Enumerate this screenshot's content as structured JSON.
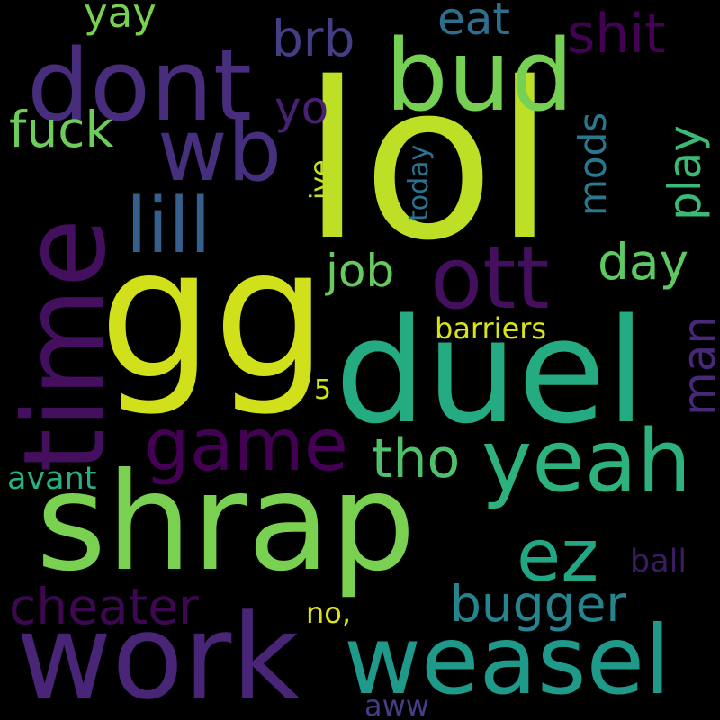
{
  "cloud": {
    "background": "#000000",
    "words": [
      {
        "text": "lol",
        "color": "#bddf26"
      },
      {
        "text": "gg",
        "color": "#d0e11c"
      },
      {
        "text": "duel",
        "color": "#25ab82"
      },
      {
        "text": "shrap",
        "color": "#7ad151"
      },
      {
        "text": "work",
        "color": "#482576"
      },
      {
        "text": "time",
        "color": "#440f5f"
      },
      {
        "text": "dont",
        "color": "#472d7b"
      },
      {
        "text": "bud",
        "color": "#75d054"
      },
      {
        "text": "weasel",
        "color": "#1f9a8a"
      },
      {
        "text": "yeah",
        "color": "#2db27d"
      },
      {
        "text": "wb",
        "color": "#46307e"
      },
      {
        "text": "ott",
        "color": "#440f5f"
      },
      {
        "text": "lill",
        "color": "#355f8d"
      },
      {
        "text": "game",
        "color": "#440154"
      },
      {
        "text": "ez",
        "color": "#22a785"
      },
      {
        "text": "cheater",
        "color": "#3e0751"
      },
      {
        "text": "bugger",
        "color": "#25858e"
      },
      {
        "text": "tho",
        "color": "#4fc16b"
      },
      {
        "text": "shit",
        "color": "#440154"
      },
      {
        "text": "brb",
        "color": "#433e85"
      },
      {
        "text": "eat",
        "color": "#2e6f8e"
      },
      {
        "text": "yay",
        "color": "#7ad151"
      },
      {
        "text": "fuck",
        "color": "#6ccd5a"
      },
      {
        "text": "yo",
        "color": "#482173"
      },
      {
        "text": "play",
        "color": "#3aba76"
      },
      {
        "text": "mods",
        "color": "#2a788e"
      },
      {
        "text": "day",
        "color": "#5ec962"
      },
      {
        "text": "job",
        "color": "#65cb5e"
      },
      {
        "text": "man",
        "color": "#482878"
      },
      {
        "text": "barriers",
        "color": "#d8e219"
      },
      {
        "text": "avant",
        "color": "#2ab07f"
      },
      {
        "text": "ball",
        "color": "#3b1c61"
      },
      {
        "text": "no,",
        "color": "#dde318"
      },
      {
        "text": "aww",
        "color": "#433e85"
      },
      {
        "text": "today",
        "color": "#2c718e"
      },
      {
        "text": "ive",
        "color": "#c0df25"
      },
      {
        "text": "5",
        "color": "#d2e21b"
      }
    ]
  }
}
